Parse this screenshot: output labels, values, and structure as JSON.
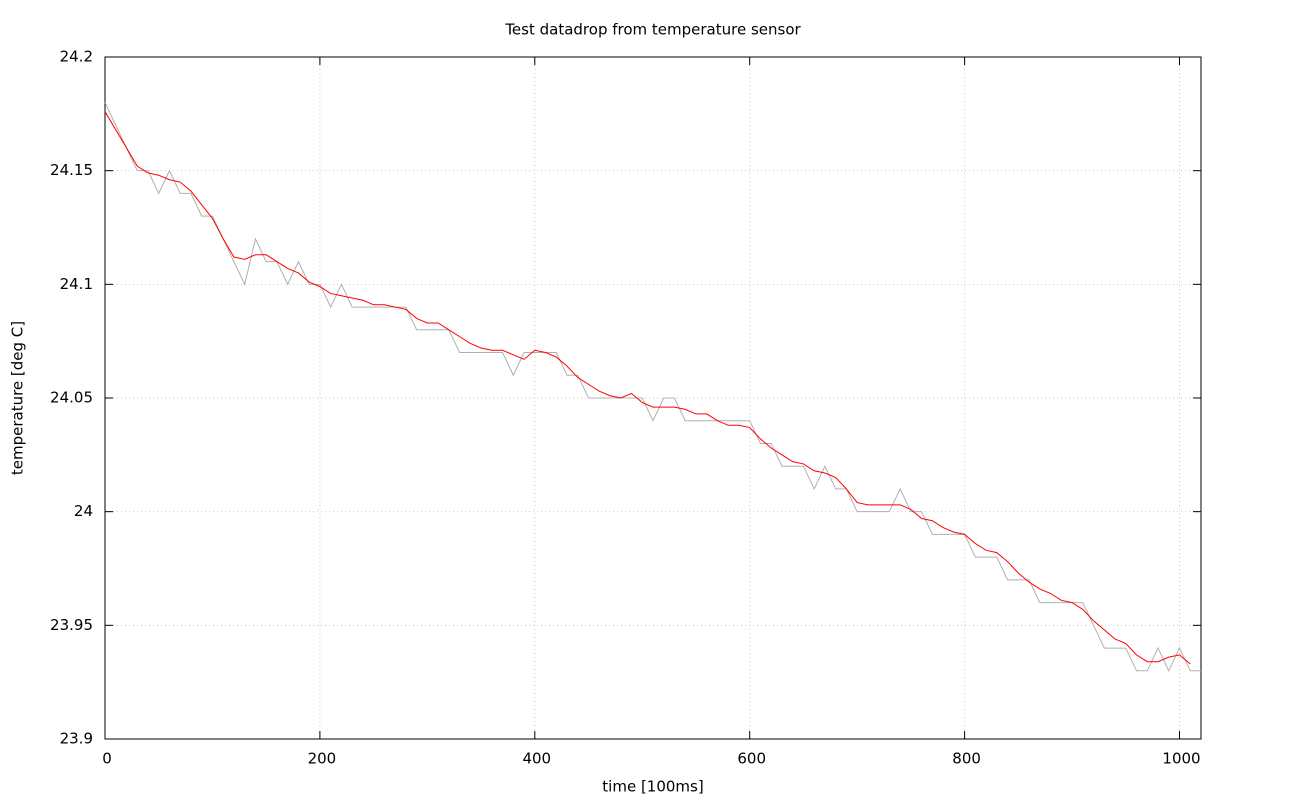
{
  "chart_data": {
    "type": "line",
    "title": "Test datadrop from temperature sensor",
    "x_label": "time [100ms]",
    "y_label": "temperature [deg C]",
    "x": [
      0,
      10,
      20,
      30,
      40,
      50,
      60,
      70,
      80,
      90,
      100,
      110,
      120,
      130,
      140,
      150,
      160,
      170,
      180,
      190,
      200,
      210,
      220,
      230,
      240,
      250,
      260,
      270,
      280,
      290,
      300,
      310,
      320,
      330,
      340,
      350,
      360,
      370,
      380,
      390,
      400,
      410,
      420,
      430,
      440,
      450,
      460,
      470,
      480,
      490,
      500,
      510,
      520,
      530,
      540,
      550,
      560,
      570,
      580,
      590,
      600,
      610,
      620,
      630,
      640,
      650,
      660,
      670,
      680,
      690,
      700,
      710,
      720,
      730,
      740,
      750,
      760,
      770,
      780,
      790,
      800,
      810,
      820,
      830,
      840,
      850,
      860,
      870,
      880,
      890,
      900,
      910,
      920,
      930,
      940,
      950,
      960,
      970,
      980,
      990,
      1000,
      1010,
      1020
    ],
    "series": [
      {
        "color": "#b0b0b0",
        "values": [
          24.18,
          24.17,
          24.16,
          24.15,
          24.15,
          24.14,
          24.15,
          24.14,
          24.14,
          24.13,
          24.13,
          24.12,
          24.11,
          24.1,
          24.12,
          24.11,
          24.11,
          24.1,
          24.11,
          24.1,
          24.1,
          24.09,
          24.1,
          24.09,
          24.09,
          24.09,
          24.09,
          24.09,
          24.09,
          24.08,
          24.08,
          24.08,
          24.08,
          24.07,
          24.07,
          24.07,
          24.07,
          24.07,
          24.06,
          24.07,
          24.07,
          24.07,
          24.07,
          24.06,
          24.06,
          24.05,
          24.05,
          24.05,
          24.05,
          24.05,
          24.05,
          24.04,
          24.05,
          24.05,
          24.04,
          24.04,
          24.04,
          24.04,
          24.04,
          24.04,
          24.04,
          24.03,
          24.03,
          24.02,
          24.02,
          24.02,
          24.01,
          24.02,
          24.01,
          24.01,
          24.0,
          24.0,
          24.0,
          24.0,
          24.01,
          24.0,
          24.0,
          23.99,
          23.99,
          23.99,
          23.99,
          23.98,
          23.98,
          23.98,
          23.97,
          23.97,
          23.97,
          23.96,
          23.96,
          23.96,
          23.96,
          23.96,
          23.95,
          23.94,
          23.94,
          23.94,
          23.93,
          23.93,
          23.94,
          23.93,
          23.94,
          23.93,
          23.93
        ]
      },
      {
        "color": "#ff0000",
        "values": [
          24.176,
          24.168,
          24.16,
          24.152,
          24.149,
          24.148,
          24.146,
          24.145,
          24.141,
          24.135,
          24.129,
          24.12,
          24.112,
          24.111,
          24.113,
          24.113,
          24.11,
          24.107,
          24.105,
          24.101,
          24.099,
          24.096,
          24.095,
          24.094,
          24.093,
          24.091,
          24.091,
          24.09,
          24.089,
          24.085,
          24.083,
          24.083,
          24.08,
          24.077,
          24.074,
          24.072,
          24.071,
          24.071,
          24.069,
          24.067,
          24.071,
          24.07,
          24.068,
          24.064,
          24.059,
          24.056,
          24.053,
          24.051,
          24.05,
          24.052,
          24.048,
          24.046,
          24.046,
          24.046,
          24.045,
          24.043,
          24.043,
          24.04,
          24.038,
          24.038,
          24.037,
          24.032,
          24.028,
          24.025,
          24.022,
          24.021,
          24.018,
          24.017,
          24.015,
          24.01,
          24.004,
          24.003,
          24.003,
          24.003,
          24.003,
          24.001,
          23.997,
          23.996,
          23.993,
          23.991,
          23.99,
          23.986,
          23.983,
          23.982,
          23.978,
          23.973,
          23.969,
          23.966,
          23.964,
          23.961,
          23.96,
          23.957,
          23.952,
          23.948,
          23.944,
          23.942,
          23.937,
          23.934,
          23.934,
          23.936,
          23.937,
          23.933,
          null
        ]
      }
    ],
    "xlim": [
      0,
      1020
    ],
    "xticks": [
      0,
      200,
      400,
      600,
      800,
      1000
    ],
    "ylim": [
      23.9,
      24.2
    ],
    "yticks": [
      23.9,
      23.95,
      24,
      24.05,
      24.1,
      24.15,
      24.2
    ],
    "grid": true
  }
}
